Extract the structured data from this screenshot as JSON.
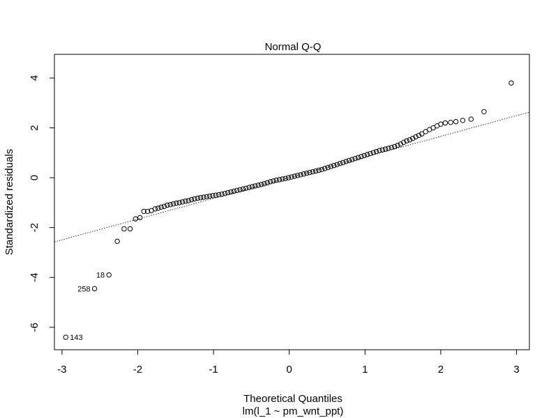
{
  "chart_data": {
    "type": "scatter",
    "title": "Normal Q-Q",
    "xlabel": "Theoretical Quantiles",
    "ylabel": "Standardized residuals",
    "subtitle": "lm(l_1 ~ pm_wnt_ppt)",
    "xlim": [
      -3.1,
      3.17
    ],
    "ylim": [
      -6.9,
      4.95
    ],
    "xticks": [
      -3,
      -2,
      -1,
      0,
      1,
      2,
      3
    ],
    "yticks": [
      -6,
      -4,
      -2,
      0,
      2,
      4
    ],
    "grid": false,
    "reference_line": {
      "slope": 0.83,
      "intercept": 0.0,
      "style": "dotted"
    },
    "labeled_points": [
      {
        "label": "143",
        "x": -2.95,
        "y": -6.4
      },
      {
        "label": "258",
        "x": -2.57,
        "y": -4.45
      },
      {
        "label": "18",
        "x": -2.38,
        "y": -3.9
      }
    ],
    "points": {
      "x": [
        -2.95,
        -2.57,
        -2.38,
        -2.27,
        -2.18,
        -2.1,
        -2.03,
        -1.97,
        -1.92,
        -1.87,
        -1.82,
        -1.77,
        -1.73,
        -1.69,
        -1.65,
        -1.61,
        -1.57,
        -1.53,
        -1.49,
        -1.45,
        -1.41,
        -1.37,
        -1.33,
        -1.29,
        -1.25,
        -1.21,
        -1.17,
        -1.13,
        -1.09,
        -1.05,
        -1.01,
        -0.97,
        -0.93,
        -0.89,
        -0.85,
        -0.81,
        -0.77,
        -0.73,
        -0.69,
        -0.65,
        -0.61,
        -0.57,
        -0.53,
        -0.49,
        -0.45,
        -0.41,
        -0.37,
        -0.33,
        -0.29,
        -0.25,
        -0.21,
        -0.17,
        -0.13,
        -0.09,
        -0.05,
        -0.01,
        0.03,
        0.07,
        0.11,
        0.15,
        0.19,
        0.23,
        0.27,
        0.31,
        0.35,
        0.39,
        0.43,
        0.47,
        0.51,
        0.55,
        0.59,
        0.63,
        0.67,
        0.71,
        0.75,
        0.79,
        0.83,
        0.87,
        0.91,
        0.95,
        0.99,
        1.03,
        1.07,
        1.11,
        1.15,
        1.19,
        1.23,
        1.27,
        1.31,
        1.35,
        1.39,
        1.43,
        1.47,
        1.51,
        1.55,
        1.59,
        1.63,
        1.67,
        1.71,
        1.75,
        1.8,
        1.85,
        1.9,
        1.95,
        2.0,
        2.06,
        2.13,
        2.2,
        2.29,
        2.4,
        2.57,
        2.93
      ],
      "y": [
        -6.4,
        -4.45,
        -3.9,
        -2.55,
        -2.05,
        -2.05,
        -1.65,
        -1.6,
        -1.35,
        -1.35,
        -1.32,
        -1.25,
        -1.22,
        -1.18,
        -1.15,
        -1.1,
        -1.08,
        -1.05,
        -1.02,
        -1.0,
        -0.97,
        -0.94,
        -0.92,
        -0.88,
        -0.85,
        -0.82,
        -0.8,
        -0.78,
        -0.76,
        -0.74,
        -0.72,
        -0.7,
        -0.68,
        -0.66,
        -0.63,
        -0.6,
        -0.57,
        -0.54,
        -0.51,
        -0.48,
        -0.45,
        -0.42,
        -0.39,
        -0.36,
        -0.33,
        -0.3,
        -0.27,
        -0.24,
        -0.2,
        -0.16,
        -0.13,
        -0.1,
        -0.08,
        -0.05,
        -0.03,
        0.0,
        0.03,
        0.06,
        0.09,
        0.12,
        0.15,
        0.18,
        0.21,
        0.24,
        0.27,
        0.3,
        0.33,
        0.37,
        0.41,
        0.45,
        0.49,
        0.53,
        0.57,
        0.61,
        0.65,
        0.69,
        0.73,
        0.77,
        0.81,
        0.85,
        0.89,
        0.93,
        0.97,
        1.01,
        1.05,
        1.09,
        1.12,
        1.15,
        1.18,
        1.21,
        1.25,
        1.3,
        1.35,
        1.42,
        1.48,
        1.52,
        1.58,
        1.64,
        1.7,
        1.76,
        1.85,
        1.93,
        2.0,
        2.08,
        2.15,
        2.2,
        2.22,
        2.25,
        2.3,
        2.35,
        2.65,
        3.8
      ]
    }
  }
}
